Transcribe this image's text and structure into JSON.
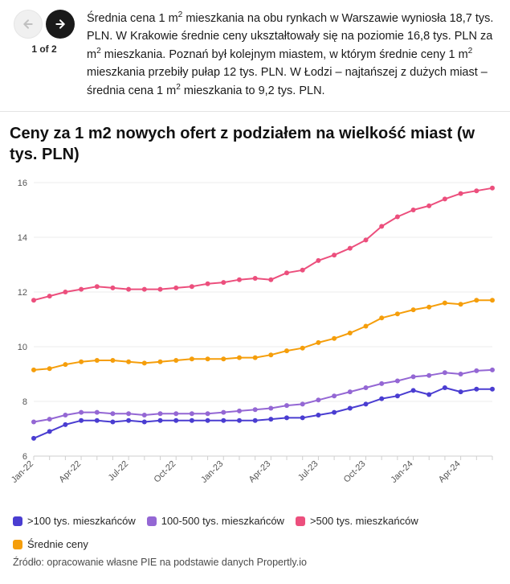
{
  "nav": {
    "counter": "1 of 2"
  },
  "intro": {
    "html": "Średnia cena 1 m<sup>2</sup> mieszkania na obu rynkach w Warszawie wyniosła 18,7 tys. PLN. W Krakowie średnie ceny ukształtowały się na poziomie 16,8 tys. PLN za m<sup>2</sup> mieszkania. Poznań był kolejnym miastem, w którym średnie ceny 1 m<sup>2</sup> mieszkania przebiły pułap 12 tys. PLN. W Łodzi – najtańszej z dużych miast – średnia cena 1 m<sup>2</sup> mieszkania to 9,2 tys. PLN."
  },
  "chart": {
    "title": "Ceny za 1 m2 nowych ofert z podziałem na wielkość miast (w tys. PLN)",
    "type": "line",
    "background_color": "#ffffff",
    "grid_color": "#eeeeee",
    "axis_color": "#555555",
    "axis_fontsize": 11,
    "ylim": [
      6,
      16
    ],
    "ytick_step": 2,
    "x_labels_full": [
      "Jan-22",
      "Feb-22",
      "Mar-22",
      "Apr-22",
      "May-22",
      "Jun-22",
      "Jul-22",
      "Aug-22",
      "Sep-22",
      "Oct-22",
      "Nov-22",
      "Dec-22",
      "Jan-23",
      "Feb-23",
      "Mar-23",
      "Apr-23",
      "May-23",
      "Jun-23",
      "Jul-23",
      "Aug-23",
      "Sep-23",
      "Oct-23",
      "Nov-23",
      "Dec-23",
      "Jan-24",
      "Feb-24",
      "Mar-24",
      "Apr-24",
      "May-24",
      "Jun-24"
    ],
    "x_labels_shown": [
      "Jan-22",
      "Apr-22",
      "Jul-22",
      "Oct-22",
      "Jan-23",
      "Apr-23",
      "Jul-23",
      "Oct-23",
      "Jan-24",
      "Apr-24"
    ],
    "line_width": 2,
    "marker_radius": 3,
    "series": [
      {
        "name": ">100 tys. mieszkańców",
        "color": "#4a3dd1",
        "data": [
          6.65,
          6.9,
          7.15,
          7.3,
          7.3,
          7.25,
          7.3,
          7.25,
          7.3,
          7.3,
          7.3,
          7.3,
          7.3,
          7.3,
          7.3,
          7.35,
          7.4,
          7.4,
          7.5,
          7.6,
          7.75,
          7.9,
          8.1,
          8.2,
          8.4,
          8.25,
          8.5,
          8.35,
          8.45,
          8.45
        ]
      },
      {
        "name": "100-500 tys. mieszkańców",
        "color": "#9467d4",
        "data": [
          7.25,
          7.35,
          7.5,
          7.6,
          7.6,
          7.55,
          7.55,
          7.5,
          7.55,
          7.55,
          7.55,
          7.55,
          7.6,
          7.65,
          7.7,
          7.75,
          7.85,
          7.9,
          8.05,
          8.2,
          8.35,
          8.5,
          8.65,
          8.75,
          8.9,
          8.95,
          9.05,
          9.0,
          9.12,
          9.15
        ]
      },
      {
        "name": ">500 tys. mieszkańców",
        "color": "#ec4f7d",
        "data": [
          11.7,
          11.85,
          12.0,
          12.1,
          12.2,
          12.15,
          12.1,
          12.1,
          12.1,
          12.15,
          12.2,
          12.3,
          12.35,
          12.45,
          12.5,
          12.45,
          12.7,
          12.8,
          13.15,
          13.35,
          13.6,
          13.9,
          14.4,
          14.75,
          15.0,
          15.15,
          15.4,
          15.6,
          15.7,
          15.8
        ]
      },
      {
        "name": "Średnie ceny",
        "color": "#f59e0b",
        "data": [
          9.15,
          9.2,
          9.35,
          9.45,
          9.5,
          9.5,
          9.45,
          9.4,
          9.45,
          9.5,
          9.55,
          9.55,
          9.55,
          9.6,
          9.6,
          9.7,
          9.85,
          9.95,
          10.15,
          10.3,
          10.5,
          10.75,
          11.05,
          11.2,
          11.35,
          11.45,
          11.6,
          11.55,
          11.7,
          11.7
        ]
      }
    ],
    "source": "Źródło: opracowanie własne PIE na podstawie danych Propertly.io"
  }
}
